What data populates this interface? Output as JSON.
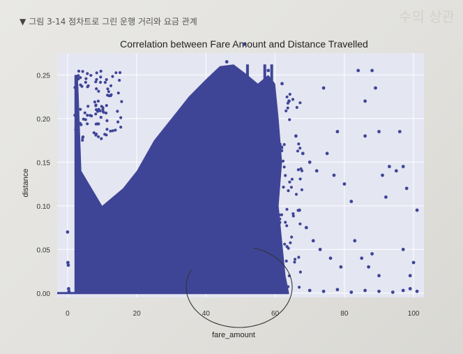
{
  "figure": {
    "caption_prefix": "▼",
    "caption": "그림 3-14 점차트로 그린 운행 거리와 요금 관계",
    "faded_text": "수의 상관",
    "background_note_icon": "check-icon"
  },
  "chart_data": {
    "type": "scatter",
    "title": "Correlation between Fare Amount and Distance Travelled",
    "xlabel": "fare_amount",
    "ylabel": "distance",
    "xlim": [
      -3,
      103
    ],
    "ylim": [
      -0.005,
      0.275
    ],
    "x_ticks": [
      0,
      20,
      40,
      60,
      80,
      100
    ],
    "x_tick_labels": [
      "0",
      "20",
      "40",
      "60",
      "80",
      "100"
    ],
    "y_ticks": [
      0.0,
      0.05,
      0.1,
      0.15,
      0.2,
      0.25
    ],
    "y_tick_labels": [
      "0.00",
      "0.05",
      "0.10",
      "0.15",
      "0.20",
      "0.25"
    ],
    "grid": true,
    "point_color": "#3f4596",
    "axes_background": "#e4e6f2",
    "annotation": "hand-drawn ellipse around fare_amount 40–65 near distance 0",
    "dense_region": "fare_amount 2–62 filled from distance 0 up to a rising boundary; near-solid vertical streaks at fare_amount ≈ 52, 57, 59 reaching distance ≈ 0.26",
    "points": [
      [
        0.0,
        0.07
      ],
      [
        0.1,
        0.035
      ],
      [
        0.2,
        0.032
      ],
      [
        0.3,
        0.005
      ],
      [
        0.4,
        0.002
      ],
      [
        46,
        0.265
      ],
      [
        51,
        0.285
      ],
      [
        58,
        0.255
      ],
      [
        62,
        0.24
      ],
      [
        64,
        0.22
      ],
      [
        66,
        0.18
      ],
      [
        68,
        0.16
      ],
      [
        70,
        0.15
      ],
      [
        72,
        0.14
      ],
      [
        74,
        0.235
      ],
      [
        75,
        0.16
      ],
      [
        77,
        0.135
      ],
      [
        78,
        0.185
      ],
      [
        80,
        0.125
      ],
      [
        82,
        0.105
      ],
      [
        84,
        0.255
      ],
      [
        86,
        0.18
      ],
      [
        86,
        0.22
      ],
      [
        88,
        0.255
      ],
      [
        89,
        0.235
      ],
      [
        90,
        0.185
      ],
      [
        91,
        0.135
      ],
      [
        92,
        0.11
      ],
      [
        93,
        0.145
      ],
      [
        67,
        0.095
      ],
      [
        69,
        0.075
      ],
      [
        71,
        0.06
      ],
      [
        73,
        0.05
      ],
      [
        76,
        0.04
      ],
      [
        79,
        0.03
      ],
      [
        83,
        0.06
      ],
      [
        85,
        0.04
      ],
      [
        87,
        0.03
      ],
      [
        88,
        0.045
      ],
      [
        90,
        0.02
      ],
      [
        95,
        0.14
      ],
      [
        96,
        0.185
      ],
      [
        97,
        0.145
      ],
      [
        98,
        0.12
      ],
      [
        97,
        0.05
      ],
      [
        99,
        0.02
      ],
      [
        100,
        0.035
      ],
      [
        101,
        0.095
      ],
      [
        99,
        0.005
      ],
      [
        70,
        0.003
      ],
      [
        74,
        0.002
      ],
      [
        78,
        0.004
      ],
      [
        82,
        0.001
      ],
      [
        86,
        0.003
      ],
      [
        90,
        0.002
      ],
      [
        94,
        0.001
      ],
      [
        97,
        0.003
      ],
      [
        101,
        0.002
      ]
    ]
  }
}
